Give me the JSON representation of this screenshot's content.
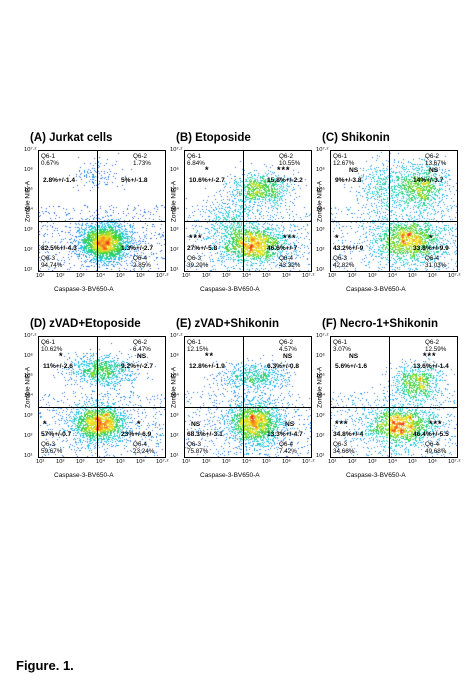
{
  "figure_caption": "Figure. 1.",
  "x_axis_label": "Caspase-3-BV650-A",
  "y_axis_label": "Zombie NIR-A",
  "x_ticks": [
    "10¹",
    "10²",
    "10³",
    "10⁴",
    "10⁵",
    "10⁶",
    "10⁷·²"
  ],
  "y_ticks": [
    "10⁷·²",
    "10⁶",
    "10⁵",
    "10⁴",
    "10³",
    "10²",
    "10¹"
  ],
  "panels": [
    {
      "title": "(A) Jurkat cells",
      "q1_name": "Q6-1",
      "q1_pct": "0.67%",
      "q2_name": "Q6-2",
      "q2_pct": "1.73%",
      "q3_name": "Q6-3",
      "q3_pct": "94.74%",
      "q4_name": "Q6-4",
      "q4_pct": "2.85%",
      "ul": "2.8%+/-1.4",
      "ur": "5%+/-1.8",
      "ll": "82.5%+/-4.3",
      "lr": "1.3%+/-2.7",
      "ul_sig": "",
      "ur_sig": "",
      "ll_sig": "",
      "lr_sig": "",
      "ul_ns": "",
      "ur_ns": "",
      "ll_ns": "",
      "lr_ns": "",
      "color": "#1e7d2a"
    },
    {
      "title": "(B) Etoposide",
      "q1_name": "Q6-1",
      "q1_pct": "6.84%",
      "q2_name": "Q6-2",
      "q2_pct": "10.55%",
      "q3_name": "Q6-3",
      "q3_pct": "39.29%",
      "q4_name": "Q6-4",
      "q4_pct": "43.32%",
      "ul": "10.6%+/-2.7",
      "ur": "15.8%+/-2.2",
      "ll": "27%+/-5.8",
      "lr": "46.6%+/-7",
      "ul_sig": "*",
      "ur_sig": "***",
      "ll_sig": "***",
      "lr_sig": "***",
      "ul_ns": "",
      "ur_ns": "",
      "ll_ns": "",
      "lr_ns": "",
      "color": "#1e7d2a"
    },
    {
      "title": "(C) Shikonin",
      "q1_name": "Q6-1",
      "q1_pct": "12.67%",
      "q2_name": "Q6-2",
      "q2_pct": "13.67%",
      "q3_name": "Q6-3",
      "q3_pct": "42.82%",
      "q4_name": "Q6-4",
      "q4_pct": "31.03%",
      "ul": "9%+/-3.8",
      "ur": "14%+/-3.7",
      "ll": "43.2%+/-9",
      "lr": "33.8%+/-9.9",
      "ul_sig": "",
      "ur_sig": "",
      "ll_sig": "*",
      "lr_sig": "*",
      "ul_ns": "NS",
      "ur_ns": "NS",
      "ll_ns": "",
      "lr_ns": "",
      "color": "#1e7d2a"
    },
    {
      "title": "(D) zVAD+Etoposide",
      "q1_name": "Q6-1",
      "q1_pct": "10.62%",
      "q2_name": "Q6-2",
      "q2_pct": "6.47%",
      "q3_name": "Q6-3",
      "q3_pct": "59.67%",
      "q4_name": "Q6-4",
      "q4_pct": "23.24%",
      "ul": "11%+/-2.6",
      "ur": "9.2%+/-2.7",
      "ll": "57%+/-0.7",
      "lr": "23%+/-6.9",
      "ul_sig": "*",
      "ur_sig": "",
      "ll_sig": "*",
      "lr_sig": "*",
      "ul_ns": "",
      "ur_ns": "NS",
      "ll_ns": "",
      "lr_ns": "",
      "color": "#1e7d2a"
    },
    {
      "title": "(E) zVAD+Shikonin",
      "q1_name": "Q6-1",
      "q1_pct": "12.15%",
      "q2_name": "Q6-2",
      "q2_pct": "4.57%",
      "q3_name": "Q6-3",
      "q3_pct": "75.87%",
      "q4_name": "Q6-4",
      "q4_pct": "7.42%",
      "ul": "12.8%+/-1.9",
      "ur": "6.3%+/-0.8",
      "ll": "68.3%+/-3.1",
      "lr": "13.3%+/-4.7",
      "ul_sig": "**",
      "ur_sig": "",
      "ll_sig": "",
      "lr_sig": "",
      "ul_ns": "",
      "ur_ns": "NS",
      "ll_ns": "NS",
      "lr_ns": "NS",
      "color": "#1e7d2a"
    },
    {
      "title": "(F) Necro-1+Shikonin",
      "q1_name": "Q6-1",
      "q1_pct": "3.07%",
      "q2_name": "Q6-2",
      "q2_pct": "12.59%",
      "q3_name": "Q6-3",
      "q3_pct": "34.66%",
      "q4_name": "Q6-4",
      "q4_pct": "49.68%",
      "ul": "5.6%+/-1.6",
      "ur": "13.6%+/-1.4",
      "ll": "34.8%+/-4",
      "lr": "46.4%+/-5.5",
      "ul_sig": "",
      "ur_sig": "***",
      "ll_sig": "***",
      "lr_sig": "***",
      "ul_ns": "NS",
      "ur_ns": "",
      "ll_ns": "",
      "lr_ns": "",
      "color": "#1e7d2a"
    }
  ]
}
